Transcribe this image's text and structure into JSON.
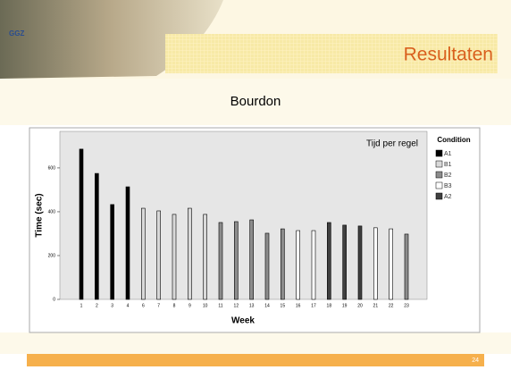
{
  "slide": {
    "logo": "GGZ",
    "title": "Resultaten",
    "subtitle": "Bourdon",
    "page_number": "24"
  },
  "chart_data": {
    "type": "bar",
    "annotation": "Tijd per regel",
    "x_label": "Week",
    "y_label": "Time (sec)",
    "legend_title": "Condition",
    "categories": [
      "1",
      "2",
      "3",
      "4",
      "6",
      "7",
      "8",
      "9",
      "10",
      "11",
      "12",
      "13",
      "14",
      "15",
      "16",
      "17",
      "18",
      "19",
      "20",
      "21",
      "22",
      "23"
    ],
    "series": [
      {
        "name": "A1",
        "color": "#000000",
        "values": [
          686,
          575,
          433,
          514,
          null,
          null,
          null,
          null,
          null,
          null,
          null,
          null,
          null,
          null,
          null,
          null,
          null,
          null,
          null,
          null,
          null,
          null
        ]
      },
      {
        "name": "B1",
        "color": "#d9d9d9",
        "values": [
          null,
          null,
          null,
          null,
          416,
          404,
          388,
          416,
          388,
          null,
          null,
          null,
          null,
          null,
          null,
          null,
          null,
          null,
          null,
          null,
          null,
          null
        ]
      },
      {
        "name": "B2",
        "color": "#8c8c8c",
        "values": [
          null,
          null,
          null,
          null,
          null,
          null,
          null,
          null,
          null,
          351,
          355,
          363,
          302,
          322,
          null,
          null,
          null,
          null,
          null,
          null,
          null,
          298
        ]
      },
      {
        "name": "B3",
        "color": "#ffffff",
        "values": [
          null,
          null,
          null,
          null,
          null,
          null,
          null,
          null,
          null,
          null,
          null,
          null,
          null,
          null,
          314,
          314,
          null,
          null,
          null,
          327,
          322,
          null
        ]
      },
      {
        "name": "A2",
        "color": "#404040",
        "values": [
          null,
          null,
          null,
          null,
          null,
          null,
          null,
          null,
          null,
          null,
          null,
          null,
          null,
          null,
          null,
          null,
          351,
          339,
          335,
          null,
          null,
          null
        ]
      }
    ],
    "ylim": [
      0,
      767
    ],
    "yticks": [
      0,
      200,
      400,
      600
    ],
    "grid": false,
    "legend": "right"
  }
}
